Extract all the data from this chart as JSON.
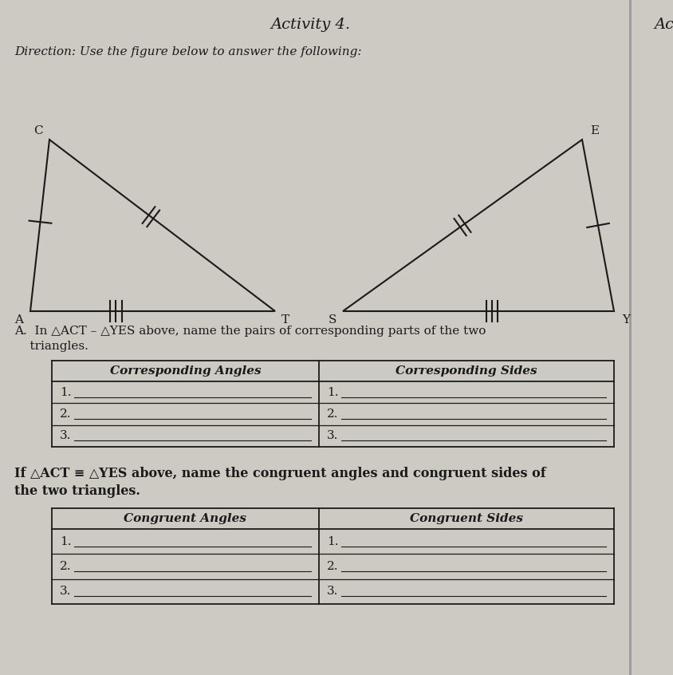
{
  "title": "Activity 4.",
  "title2": "Acti",
  "direction": "Direction: Use the figure below to answer the following:",
  "lbl_A": "A",
  "lbl_C": "C",
  "lbl_T": "T",
  "lbl_S": "S",
  "lbl_Y": "Y",
  "lbl_E": "E",
  "qA_line1": "A.  In △ACT – △YES above, name the pairs of corresponding parts of the two",
  "qA_line2": "    triangles.",
  "col1_header": "Corresponding Angles",
  "col2_header": "Corresponding Sides",
  "qB_line1": "If △ACT ≡ △YES above, name the congruent angles and congruent sides of",
  "qB_line2": "the two triangles.",
  "col3_header": "Congruent Angles",
  "col4_header": "Congruent Sides",
  "bg_color": "#cdc9c3",
  "paper_color": "#d4cfc9",
  "text_color": "#1a1a1a",
  "line_color": "#1a1a1a",
  "divider_color": "#999999"
}
